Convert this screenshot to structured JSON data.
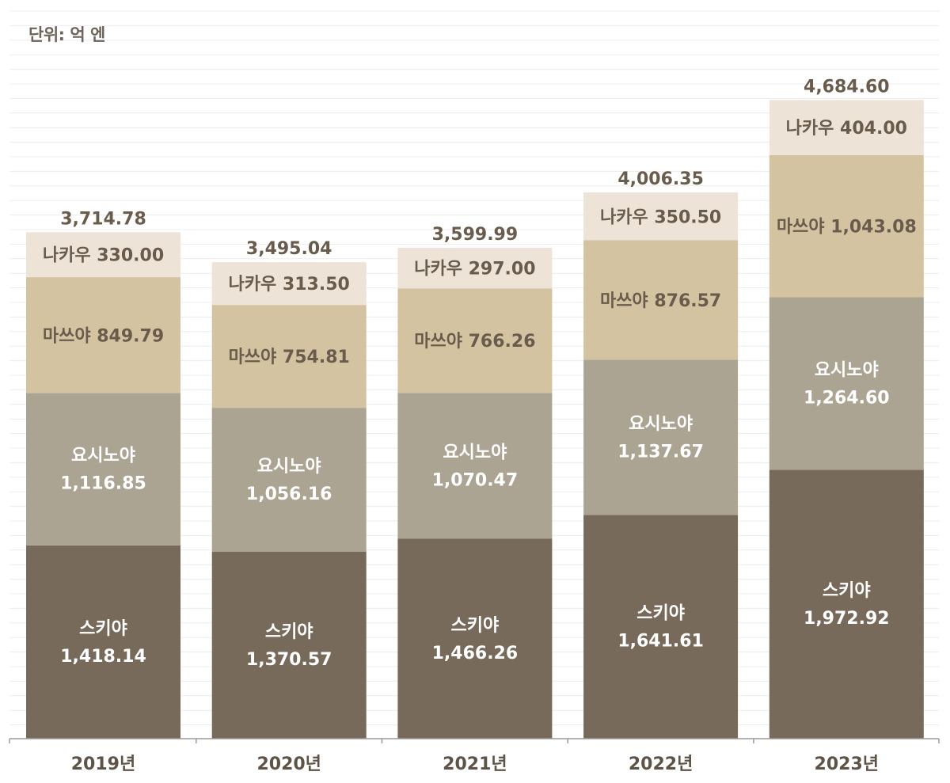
{
  "unit_label": "단위: 억 엔",
  "chart_data": {
    "type": "bar",
    "stacked": true,
    "unit": "억 엔",
    "categories": [
      "2019년",
      "2020년",
      "2021년",
      "2022년",
      "2023년"
    ],
    "series": [
      {
        "name": "스키야",
        "values": [
          1418.14,
          1370.57,
          1466.26,
          1641.61,
          1972.92
        ],
        "labels": [
          "1,418.14",
          "1,370.57",
          "1,466.26",
          "1,641.61",
          "1,972.92"
        ],
        "color": "#776a5b",
        "text_color": "#ffffff"
      },
      {
        "name": "요시노야",
        "values": [
          1116.85,
          1056.16,
          1070.47,
          1137.67,
          1264.6
        ],
        "labels": [
          "1,116.85",
          "1,056.16",
          "1,070.47",
          "1,137.67",
          "1,264.60"
        ],
        "color": "#aca493",
        "text_color": "#ffffff"
      },
      {
        "name": "마쓰야",
        "values": [
          849.79,
          754.81,
          766.26,
          876.57,
          1043.08
        ],
        "labels": [
          "849.79",
          "754.81",
          "766.26",
          "876.57",
          "1,043.08"
        ],
        "color": "#d4c3a1",
        "text_color": "#6a5c4d"
      },
      {
        "name": "나카우",
        "values": [
          330.0,
          313.5,
          297.0,
          350.5,
          404.0
        ],
        "labels": [
          "330.00",
          "313.50",
          "297.00",
          "350.50",
          "404.00"
        ],
        "color": "#ede3d6",
        "text_color": "#6a5c4d"
      }
    ],
    "totals": [
      3714.78,
      3495.04,
      3599.99,
      4006.35,
      4684.6
    ],
    "total_labels": [
      "3,714.78",
      "3,495.04",
      "3,599.99",
      "4,006.35",
      "4,684.60"
    ],
    "ylim": [
      0,
      5000
    ],
    "grid": true,
    "legend": "none"
  }
}
